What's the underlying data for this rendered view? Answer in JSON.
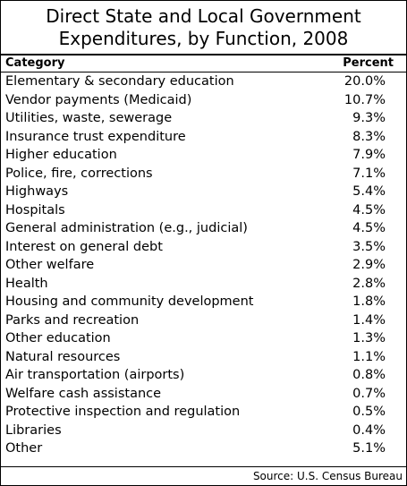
{
  "chart_data": {
    "type": "table",
    "title_lines": [
      "Direct State and Local Government",
      "Expenditures, by Function, 2008"
    ],
    "columns": [
      "Category",
      "Percent"
    ],
    "rows": [
      {
        "category": "Elementary & secondary education",
        "percent": "20.0%"
      },
      {
        "category": "Vendor payments (Medicaid)",
        "percent": "10.7%"
      },
      {
        "category": "Utilities, waste, sewerage",
        "percent": "9.3%"
      },
      {
        "category": "Insurance trust expenditure",
        "percent": "8.3%"
      },
      {
        "category": "Higher education",
        "percent": "7.9%"
      },
      {
        "category": "Police, fire, corrections",
        "percent": "7.1%"
      },
      {
        "category": "Highways",
        "percent": "5.4%"
      },
      {
        "category": "Hospitals",
        "percent": "4.5%"
      },
      {
        "category": "General administration (e.g., judicial)",
        "percent": "4.5%"
      },
      {
        "category": "Interest on general debt",
        "percent": "3.5%"
      },
      {
        "category": "Other welfare",
        "percent": "2.9%"
      },
      {
        "category": "Health",
        "percent": "2.8%"
      },
      {
        "category": "Housing and community development",
        "percent": "1.8%"
      },
      {
        "category": "Parks and recreation",
        "percent": "1.4%"
      },
      {
        "category": "Other education",
        "percent": "1.3%"
      },
      {
        "category": "Natural resources",
        "percent": "1.1%"
      },
      {
        "category": "Air transportation (airports)",
        "percent": "0.8%"
      },
      {
        "category": "Welfare cash assistance",
        "percent": "0.7%"
      },
      {
        "category": "Protective inspection and regulation",
        "percent": "0.5%"
      },
      {
        "category": "Libraries",
        "percent": "0.4%"
      },
      {
        "category": "Other",
        "percent": "5.1%"
      }
    ],
    "source": "Source: U.S. Census Bureau"
  }
}
